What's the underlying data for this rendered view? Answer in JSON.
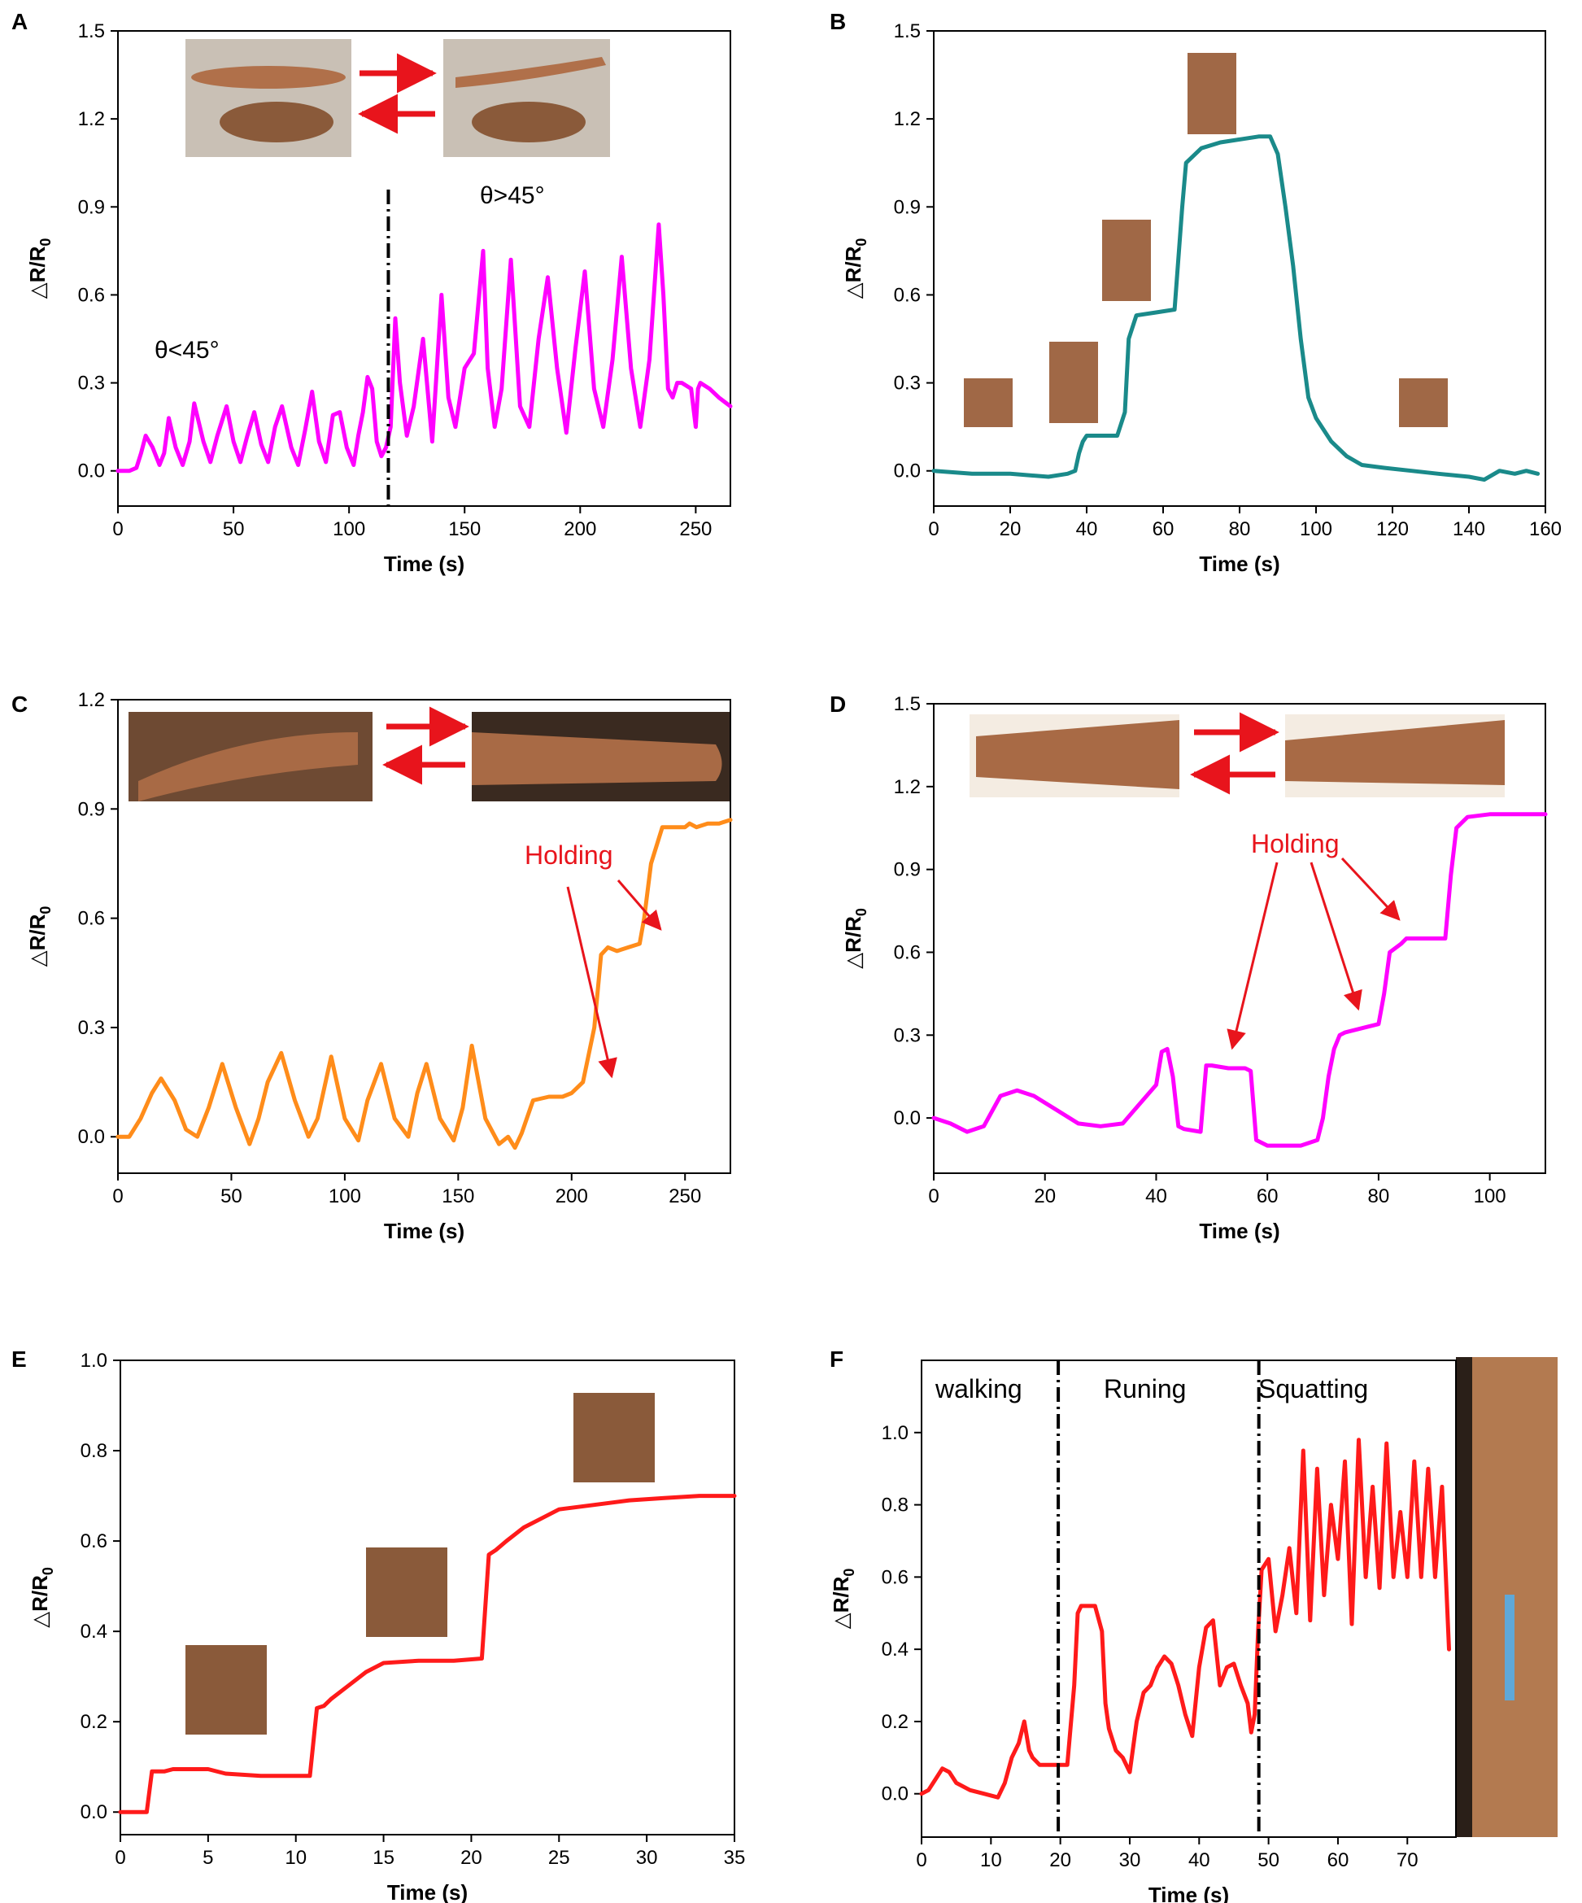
{
  "chart_data": [
    {
      "panel": "A",
      "type": "line",
      "xlabel": "Time (s)",
      "ylabel": "△R/R",
      "ylabel_sub": "0",
      "xlim": [
        0,
        265
      ],
      "ylim": [
        -0.12,
        1.5
      ],
      "xticks": [
        0,
        50,
        100,
        150,
        200,
        250
      ],
      "yticks": [
        0.0,
        0.3,
        0.6,
        0.9,
        1.2,
        1.5
      ],
      "color": "#ff00ff",
      "series": [
        {
          "x": [
            0,
            5,
            8,
            10,
            12,
            15,
            18,
            20,
            22,
            25,
            28,
            31,
            33,
            37,
            40,
            43,
            47,
            50,
            53,
            56,
            59,
            62,
            65,
            68,
            71,
            75,
            78,
            81,
            84,
            87,
            90,
            93,
            96,
            99,
            102,
            104,
            106,
            108,
            110,
            112,
            114,
            116,
            118,
            120,
            122,
            125,
            128,
            132,
            136,
            138,
            140,
            143,
            146,
            150,
            154,
            158,
            160,
            163,
            166,
            170,
            174,
            178,
            182,
            186,
            190,
            194,
            198,
            202,
            206,
            210,
            214,
            218,
            222,
            226,
            230,
            234,
            236,
            238,
            240,
            242,
            244,
            248,
            250,
            251,
            252,
            256,
            260,
            265
          ],
          "y": [
            0.0,
            0.0,
            0.01,
            0.06,
            0.12,
            0.08,
            0.02,
            0.06,
            0.18,
            0.08,
            0.02,
            0.1,
            0.23,
            0.1,
            0.03,
            0.12,
            0.22,
            0.1,
            0.03,
            0.12,
            0.2,
            0.09,
            0.03,
            0.15,
            0.22,
            0.08,
            0.02,
            0.14,
            0.27,
            0.1,
            0.03,
            0.19,
            0.2,
            0.08,
            0.02,
            0.12,
            0.2,
            0.32,
            0.28,
            0.1,
            0.05,
            0.08,
            0.15,
            0.52,
            0.3,
            0.12,
            0.22,
            0.45,
            0.1,
            0.35,
            0.6,
            0.25,
            0.15,
            0.35,
            0.4,
            0.75,
            0.35,
            0.15,
            0.28,
            0.72,
            0.22,
            0.15,
            0.45,
            0.66,
            0.35,
            0.13,
            0.42,
            0.68,
            0.28,
            0.15,
            0.38,
            0.73,
            0.35,
            0.15,
            0.38,
            0.84,
            0.6,
            0.28,
            0.25,
            0.3,
            0.3,
            0.28,
            0.15,
            0.28,
            0.3,
            0.28,
            0.25,
            0.22
          ]
        }
      ],
      "annotations": [
        "θ<45°",
        "θ>45°"
      ],
      "divider_x": 117
    },
    {
      "panel": "B",
      "type": "line",
      "xlabel": "Time (s)",
      "ylabel": "△R/R",
      "ylabel_sub": "0",
      "xlim": [
        0,
        160
      ],
      "ylim": [
        -0.12,
        1.5
      ],
      "xticks": [
        0,
        20,
        40,
        60,
        80,
        100,
        120,
        140,
        160
      ],
      "yticks": [
        0.0,
        0.3,
        0.6,
        0.9,
        1.2,
        1.5
      ],
      "color": "#1a8a8a",
      "series": [
        {
          "x": [
            0,
            10,
            20,
            30,
            35,
            37,
            38,
            39,
            40,
            44,
            48,
            50,
            51,
            53,
            58,
            63,
            65,
            66,
            70,
            75,
            80,
            85,
            88,
            90,
            92,
            94,
            96,
            98,
            100,
            104,
            108,
            112,
            118,
            125,
            132,
            140,
            144,
            148,
            152,
            155,
            158
          ],
          "y": [
            0.0,
            -0.01,
            -0.01,
            -0.02,
            -0.01,
            0.0,
            0.06,
            0.1,
            0.12,
            0.12,
            0.12,
            0.2,
            0.45,
            0.53,
            0.54,
            0.55,
            0.9,
            1.05,
            1.1,
            1.12,
            1.13,
            1.14,
            1.14,
            1.08,
            0.9,
            0.7,
            0.45,
            0.25,
            0.18,
            0.1,
            0.05,
            0.02,
            0.01,
            0.0,
            -0.01,
            -0.02,
            -0.03,
            0.0,
            -0.01,
            0.0,
            -0.01
          ]
        }
      ]
    },
    {
      "panel": "C",
      "type": "line",
      "xlabel": "Time (s)",
      "ylabel": "△R/R",
      "ylabel_sub": "0",
      "xlim": [
        0,
        270
      ],
      "ylim": [
        -0.1,
        1.2
      ],
      "xticks": [
        0,
        50,
        100,
        150,
        200,
        250
      ],
      "yticks": [
        0.0,
        0.3,
        0.6,
        0.9,
        1.2
      ],
      "color": "#ff8c1a",
      "series": [
        {
          "x": [
            0,
            5,
            10,
            15,
            19,
            25,
            30,
            35,
            40,
            46,
            52,
            58,
            62,
            66,
            72,
            78,
            84,
            88,
            94,
            100,
            106,
            110,
            116,
            122,
            128,
            132,
            136,
            142,
            148,
            152,
            156,
            162,
            168,
            172,
            175,
            178,
            183,
            190,
            193,
            196,
            200,
            205,
            210,
            213,
            216,
            220,
            225,
            230,
            232,
            235,
            240,
            245,
            250,
            252,
            255,
            260,
            265,
            270
          ],
          "y": [
            0.0,
            0.0,
            0.05,
            0.12,
            0.16,
            0.1,
            0.02,
            0.0,
            0.08,
            0.2,
            0.08,
            -0.02,
            0.05,
            0.15,
            0.23,
            0.1,
            0.0,
            0.05,
            0.22,
            0.05,
            -0.01,
            0.1,
            0.2,
            0.05,
            0.0,
            0.12,
            0.2,
            0.05,
            -0.01,
            0.08,
            0.25,
            0.05,
            -0.02,
            0.0,
            -0.03,
            0.01,
            0.1,
            0.11,
            0.11,
            0.11,
            0.12,
            0.15,
            0.3,
            0.5,
            0.52,
            0.51,
            0.52,
            0.53,
            0.6,
            0.75,
            0.85,
            0.85,
            0.85,
            0.86,
            0.85,
            0.86,
            0.86,
            0.87
          ]
        }
      ],
      "annotations": [
        "Holding"
      ]
    },
    {
      "panel": "D",
      "type": "line",
      "xlabel": "Time (s)",
      "ylabel": "△R/R",
      "ylabel_sub": "0",
      "xlim": [
        0,
        110
      ],
      "ylim": [
        -0.2,
        1.5
      ],
      "xticks": [
        0,
        20,
        40,
        60,
        80,
        100
      ],
      "yticks": [
        0.0,
        0.3,
        0.6,
        0.9,
        1.2,
        1.5
      ],
      "color": "#ff00ff",
      "series": [
        {
          "x": [
            0,
            3,
            6,
            9,
            12,
            15,
            18,
            22,
            26,
            30,
            34,
            37,
            40,
            41,
            42,
            43,
            44,
            45,
            48,
            49,
            50,
            53,
            56,
            57,
            58,
            60,
            63,
            66,
            69,
            70,
            71,
            72,
            73,
            74,
            78,
            80,
            81,
            82,
            84,
            85,
            88,
            92,
            93,
            94,
            96,
            100,
            105,
            110
          ],
          "y": [
            0.0,
            -0.02,
            -0.05,
            -0.03,
            0.08,
            0.1,
            0.08,
            0.03,
            -0.02,
            -0.03,
            -0.02,
            0.05,
            0.12,
            0.24,
            0.25,
            0.15,
            -0.03,
            -0.04,
            -0.05,
            0.19,
            0.19,
            0.18,
            0.18,
            0.17,
            -0.08,
            -0.1,
            -0.1,
            -0.1,
            -0.08,
            0.0,
            0.15,
            0.25,
            0.3,
            0.31,
            0.33,
            0.34,
            0.45,
            0.6,
            0.63,
            0.65,
            0.65,
            0.65,
            0.88,
            1.05,
            1.09,
            1.1,
            1.1,
            1.1
          ]
        }
      ],
      "annotations": [
        "Holding"
      ]
    },
    {
      "panel": "E",
      "type": "line",
      "xlabel": "Time (s)",
      "ylabel": "△R/R",
      "ylabel_sub": "0",
      "xlim": [
        0,
        35
      ],
      "ylim": [
        -0.05,
        1.0
      ],
      "xticks": [
        0,
        5,
        10,
        15,
        20,
        25,
        30,
        35
      ],
      "yticks": [
        0.0,
        0.2,
        0.4,
        0.6,
        0.8,
        1.0
      ],
      "color": "#ff1a1a",
      "series": [
        {
          "x": [
            0,
            1.5,
            1.8,
            2.5,
            3,
            5,
            6,
            8,
            10,
            10.8,
            11.2,
            11.6,
            12,
            13,
            14,
            15,
            17,
            19,
            20.6,
            21,
            21.4,
            22,
            23,
            24,
            25,
            27,
            29,
            31,
            33,
            35
          ],
          "y": [
            0.0,
            0.0,
            0.09,
            0.09,
            0.095,
            0.095,
            0.085,
            0.08,
            0.08,
            0.08,
            0.23,
            0.235,
            0.25,
            0.28,
            0.31,
            0.33,
            0.335,
            0.335,
            0.34,
            0.57,
            0.58,
            0.6,
            0.63,
            0.65,
            0.67,
            0.68,
            0.69,
            0.695,
            0.7,
            0.7
          ]
        }
      ]
    },
    {
      "panel": "F",
      "type": "line",
      "xlabel": "Time (s)",
      "ylabel": "△R/R",
      "ylabel_sub": "0",
      "xlim": [
        0,
        77
      ],
      "ylim": [
        -0.12,
        1.2
      ],
      "xticks": [
        0,
        10,
        20,
        30,
        40,
        50,
        60,
        70
      ],
      "yticks": [
        0.0,
        0.2,
        0.4,
        0.6,
        0.8,
        1.0
      ],
      "color": "#ff1a1a",
      "series": [
        {
          "x": [
            0,
            1,
            2,
            3,
            4,
            5,
            7,
            9,
            11,
            12,
            13,
            14,
            14.8,
            15.5,
            16,
            17,
            18,
            19,
            20,
            21,
            22,
            22.5,
            23,
            25,
            26,
            26.5,
            27,
            28,
            29,
            30,
            31,
            32,
            33,
            34,
            35,
            36,
            37,
            38,
            39,
            40,
            41,
            42,
            43,
            44,
            45,
            46,
            47,
            47.5,
            48,
            48.5,
            49,
            50,
            51,
            52,
            53,
            54,
            55,
            56,
            57,
            58,
            59,
            60,
            61,
            62,
            63,
            64,
            65,
            66,
            67,
            68,
            69,
            70,
            71,
            72,
            73,
            74,
            75,
            76
          ],
          "y": [
            0.0,
            0.01,
            0.04,
            0.07,
            0.06,
            0.03,
            0.01,
            0.0,
            -0.01,
            0.03,
            0.1,
            0.14,
            0.2,
            0.12,
            0.1,
            0.08,
            0.08,
            0.08,
            0.08,
            0.08,
            0.3,
            0.5,
            0.52,
            0.52,
            0.45,
            0.25,
            0.18,
            0.12,
            0.1,
            0.06,
            0.2,
            0.28,
            0.3,
            0.35,
            0.38,
            0.36,
            0.3,
            0.22,
            0.16,
            0.35,
            0.46,
            0.48,
            0.3,
            0.35,
            0.36,
            0.3,
            0.25,
            0.17,
            0.22,
            0.45,
            0.62,
            0.65,
            0.45,
            0.55,
            0.68,
            0.5,
            0.95,
            0.48,
            0.9,
            0.55,
            0.8,
            0.65,
            0.92,
            0.47,
            0.98,
            0.6,
            0.85,
            0.57,
            0.97,
            0.6,
            0.78,
            0.6,
            0.92,
            0.6,
            0.9,
            0.6,
            0.85,
            0.4
          ],
          "annotations": []
        }
      ],
      "annotations": [
        "walking",
        "Runing",
        "Squatting"
      ],
      "divider_x": [
        19.7,
        48.6
      ]
    }
  ]
}
